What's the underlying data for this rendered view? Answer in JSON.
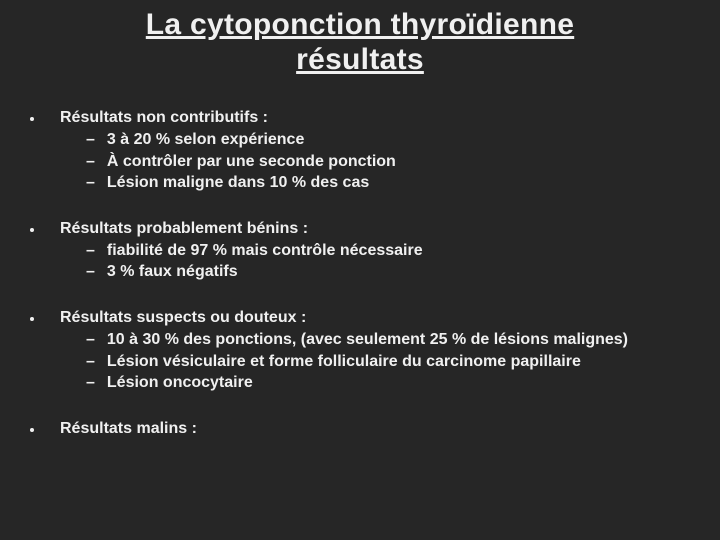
{
  "colors": {
    "background": "#262626",
    "text": "#f0f0f0"
  },
  "typography": {
    "title_fontsize": 30,
    "body_fontsize": 16,
    "font_family": "Arial",
    "weight": "bold"
  },
  "title": {
    "line1": "La cytoponction thyroïdienne",
    "line2": "résultats"
  },
  "sections": [
    {
      "heading": "Résultats non contributifs :",
      "items": [
        "3 à 20 % selon expérience",
        "À contrôler par une seconde ponction",
        "Lésion maligne dans 10 % des cas"
      ]
    },
    {
      "heading": "Résultats probablement bénins :",
      "items": [
        "fiabilité de 97 % mais contrôle nécessaire",
        "3 % faux négatifs"
      ]
    },
    {
      "heading": "Résultats suspects ou douteux :",
      "items": [
        "10 à 30 % des ponctions, (avec seulement 25 % de lésions malignes)",
        "Lésion vésiculaire et forme folliculaire du carcinome papillaire",
        "Lésion oncocytaire"
      ]
    },
    {
      "heading": "Résultats malins :",
      "items": []
    }
  ]
}
